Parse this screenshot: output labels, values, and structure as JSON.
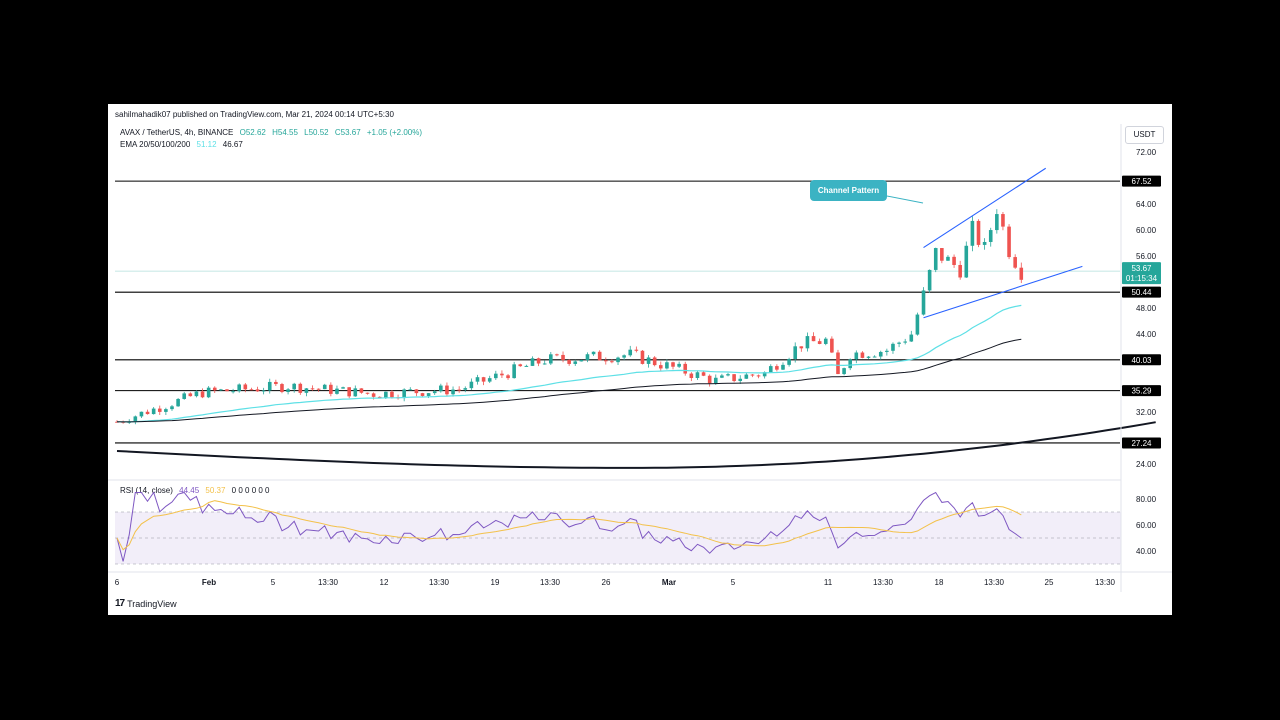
{
  "header": {
    "publisher": "sahilmahadik07 published on TradingView.com, Mar 21, 2024 00:14 UTC+5:30",
    "symbol": "AVAX / TetherUS, 4h, BINANCE",
    "ohlc": {
      "open": "O52.62",
      "high": "H54.55",
      "low": "L50.52",
      "close": "C53.67",
      "change": "+1.05 (+2.00%)"
    },
    "ema_label": "EMA 20/50/100/200",
    "ema_values": [
      "51.12",
      "46.67"
    ],
    "rsi_label": "RSI (14, close)",
    "rsi_values": [
      "44.45",
      "50.37"
    ],
    "rsi_zero_values": "0 0 0 0 0 0",
    "currency": "USDT",
    "brand": "TradingView"
  },
  "annotation": {
    "text": "Channel Pattern"
  },
  "colors": {
    "up": "#26a69a",
    "down": "#ef5350",
    "ema_fast": "#5ee0e6",
    "ema_slow": "#131722",
    "channel": "#2962ff",
    "rsi_line": "#7e57c2",
    "rsi_ma": "#f3c14a",
    "annotation_bg": "#3bb3c3",
    "price_tag": "#26a69a"
  },
  "chart_data": {
    "type": "candlestick",
    "symbol": "AVAX/USDT",
    "timeframe": "4h",
    "ylim": [
      22,
      74
    ],
    "y_ticks": [
      72,
      64,
      60,
      56,
      48,
      44,
      32,
      24
    ],
    "x_ticks": [
      "6",
      "Feb",
      "5",
      "13:30",
      "12",
      "13:30",
      "19",
      "13:30",
      "26",
      "Mar",
      "5",
      "11",
      "13:30",
      "18",
      "13:30",
      "25",
      "13:30"
    ],
    "horizontal_levels": [
      67.52,
      50.44,
      40.03,
      35.29,
      27.24
    ],
    "current_price": {
      "value": "53.67",
      "countdown": "01:15:34"
    },
    "channel": {
      "upper": {
        "start": {
          "date": "Mar 12",
          "price": 57.3
        },
        "end": {
          "date": "Mar 22",
          "price": 69.5
        }
      },
      "lower": {
        "start": {
          "date": "Mar 12",
          "price": 46.5
        },
        "end": {
          "date": "Mar 25",
          "price": 54.4
        }
      }
    },
    "weekly_close_approx": [
      {
        "date": "Jan 6",
        "price": 30.5
      },
      {
        "date": "Jan 13",
        "price": 35.0
      },
      {
        "date": "Jan 20",
        "price": 36.0
      },
      {
        "date": "Jan 27",
        "price": 34.8
      },
      {
        "date": "Feb 3",
        "price": 35.5
      },
      {
        "date": "Feb 10",
        "price": 40.0
      },
      {
        "date": "Feb 17",
        "price": 40.8
      },
      {
        "date": "Feb 24",
        "price": 36.8
      },
      {
        "date": "Mar 2",
        "price": 42.5
      },
      {
        "date": "Mar 9",
        "price": 41.5
      },
      {
        "date": "Mar 16",
        "price": 60.0
      },
      {
        "date": "Mar 20",
        "price": 53.67
      }
    ],
    "rsi": {
      "ylim": [
        30,
        90
      ],
      "ticks": [
        80,
        60,
        40
      ],
      "bands": [
        70,
        50,
        30
      ],
      "current": 44.45,
      "ma": 50.37
    }
  }
}
